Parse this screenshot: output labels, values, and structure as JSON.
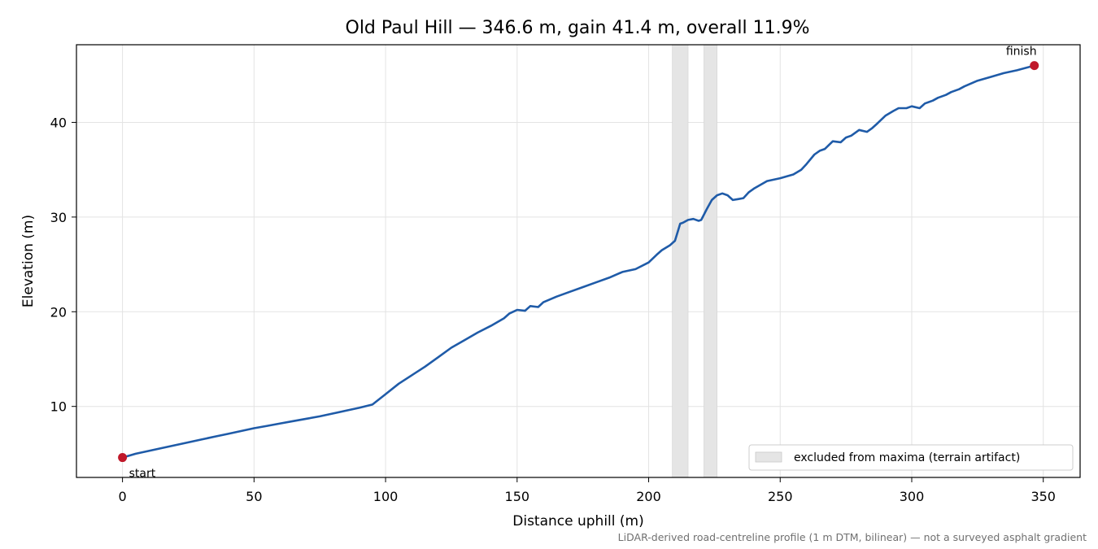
{
  "chart_data": {
    "type": "line",
    "title": "Old Paul Hill — 346.6 m, gain 41.4 m, overall 11.9%",
    "xlabel": "Distance uphill (m)",
    "ylabel": "Elevation (m)",
    "xlim": [
      -17.5,
      364
    ],
    "ylim": [
      2.5,
      48.2
    ],
    "xticks": [
      0,
      50,
      100,
      150,
      200,
      250,
      300,
      350
    ],
    "yticks": [
      10,
      20,
      30,
      40
    ],
    "grid": true,
    "series": [
      {
        "color": "#1f5ba8",
        "x": [
          0,
          5,
          10,
          15,
          20,
          25,
          30,
          35,
          40,
          45,
          50,
          55,
          60,
          65,
          70,
          75,
          80,
          85,
          90,
          95,
          100,
          105,
          110,
          115,
          120,
          125,
          130,
          135,
          140,
          145,
          147,
          150,
          153,
          155,
          158,
          160,
          165,
          170,
          175,
          180,
          185,
          190,
          195,
          200,
          203,
          205,
          208,
          210,
          212,
          213,
          215,
          217,
          219,
          220,
          222,
          224,
          226,
          228,
          230,
          232,
          234,
          236,
          238,
          240,
          245,
          250,
          255,
          258,
          260,
          263,
          265,
          267,
          270,
          273,
          275,
          277,
          280,
          283,
          285,
          287,
          290,
          293,
          295,
          298,
          300,
          303,
          305,
          308,
          310,
          313,
          315,
          318,
          320,
          325,
          330,
          335,
          340,
          346.6
        ],
        "y": [
          4.6,
          5.0,
          5.3,
          5.6,
          5.9,
          6.2,
          6.5,
          6.8,
          7.1,
          7.4,
          7.7,
          7.95,
          8.2,
          8.45,
          8.7,
          8.95,
          9.25,
          9.55,
          9.85,
          10.2,
          11.3,
          12.4,
          13.3,
          14.2,
          15.2,
          16.2,
          17.0,
          17.8,
          18.5,
          19.3,
          19.8,
          20.2,
          20.1,
          20.6,
          20.5,
          21.0,
          21.6,
          22.1,
          22.6,
          23.1,
          23.6,
          24.2,
          24.5,
          25.2,
          26.0,
          26.5,
          27.0,
          27.5,
          29.3,
          29.4,
          29.7,
          29.8,
          29.6,
          29.7,
          30.8,
          31.8,
          32.3,
          32.5,
          32.3,
          31.8,
          31.9,
          32.0,
          32.6,
          33.0,
          33.8,
          34.1,
          34.5,
          35.0,
          35.6,
          36.6,
          37.0,
          37.2,
          38.0,
          37.9,
          38.4,
          38.6,
          39.2,
          39.0,
          39.4,
          39.9,
          40.7,
          41.2,
          41.5,
          41.5,
          41.7,
          41.5,
          42.0,
          42.3,
          42.6,
          42.9,
          43.2,
          43.5,
          43.8,
          44.4,
          44.8,
          45.2,
          45.5,
          46.0
        ]
      }
    ],
    "markers": [
      {
        "x": 0,
        "y": 4.6,
        "label": "start",
        "color": "#c0182a"
      },
      {
        "x": 346.6,
        "y": 46.0,
        "label": "finish",
        "color": "#c0182a"
      }
    ],
    "excluded_bands": [
      [
        209,
        215
      ],
      [
        221,
        226
      ]
    ],
    "band_color": "#e5e5e5",
    "legend": {
      "placement": "lower right",
      "label": "excluded from maxima (terrain artifact)"
    },
    "footnote": "LiDAR-derived road-centreline profile (1 m DTM, bilinear) — not a surveyed asphalt gradient"
  }
}
